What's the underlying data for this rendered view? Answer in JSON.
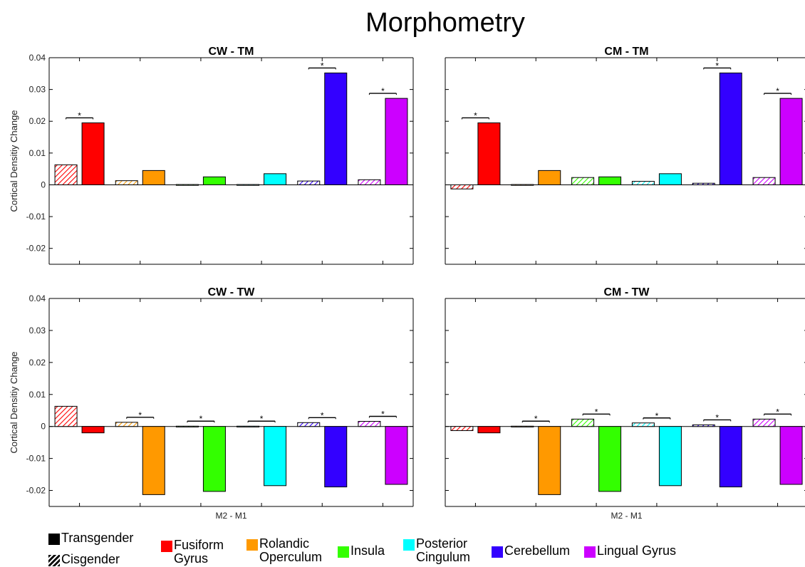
{
  "chart_data": {
    "type": "bar",
    "title": "Morphometry",
    "ylabel": "Cortical Densitiy Change",
    "xlabel": "M2 - M1",
    "ylim": [
      -0.025,
      0.04
    ],
    "yticks": [
      0.04,
      0.03,
      0.02,
      0.01,
      0,
      -0.01,
      -0.02
    ],
    "yticklabels": [
      "0.04",
      "0.03",
      "0.02",
      "0.01",
      "0",
      "-0.01",
      "-0.02"
    ],
    "regions": [
      "Fusiform Gyrus",
      "Rolandic Operculum",
      "Insula",
      "Posterior Cingulum",
      "Cerebellum",
      "Lingual Gyrus"
    ],
    "region_colors": [
      "#ff0000",
      "#ff9900",
      "#33ff00",
      "#00ffff",
      "#3300ff",
      "#cc00ff"
    ],
    "groups": [
      "Cisgender",
      "Transgender"
    ],
    "significance_marker": "*",
    "panels": [
      {
        "title": "CW - TM",
        "show_xlabel": false,
        "show_yaxis": true,
        "cisgender": [
          0.0063,
          0.0013,
          0.0001,
          0.0001,
          0.0012,
          0.0016
        ],
        "transgender": [
          0.0195,
          0.0045,
          0.0025,
          0.0035,
          0.0352,
          0.0272
        ],
        "significant": [
          true,
          false,
          false,
          false,
          true,
          true
        ]
      },
      {
        "title": "CM - TM",
        "show_xlabel": false,
        "show_yaxis": false,
        "cisgender": [
          -0.0013,
          0.0001,
          0.0023,
          0.0011,
          0.0005,
          0.0023
        ],
        "transgender": [
          0.0195,
          0.0045,
          0.0025,
          0.0035,
          0.0352,
          0.0272
        ],
        "significant": [
          true,
          false,
          false,
          false,
          true,
          true
        ]
      },
      {
        "title": "CW - TW",
        "show_xlabel": true,
        "show_yaxis": true,
        "cisgender": [
          0.0063,
          0.0013,
          0.0001,
          0.0001,
          0.0012,
          0.0016
        ],
        "transgender": [
          -0.002,
          -0.0213,
          -0.0203,
          -0.0185,
          -0.0189,
          -0.0181
        ],
        "significant": [
          false,
          true,
          true,
          true,
          true,
          true
        ]
      },
      {
        "title": "CM - TW",
        "show_xlabel": true,
        "show_yaxis": false,
        "cisgender": [
          -0.0013,
          0.0001,
          0.0023,
          0.0011,
          0.0005,
          0.0023
        ],
        "transgender": [
          -0.002,
          -0.0213,
          -0.0203,
          -0.0185,
          -0.0189,
          -0.0181
        ],
        "significant": [
          false,
          true,
          true,
          true,
          true,
          true
        ]
      }
    ]
  },
  "legend": {
    "transgender": "Transgender",
    "cisgender": "Cisgender",
    "fusiform": "Fusiform\nGyrus",
    "rolandic": "Rolandic\nOperculum",
    "insula": "Insula",
    "posterior": "Posterior\nCingulum",
    "cerebellum": "Cerebellum",
    "lingual": "Lingual Gyrus"
  }
}
